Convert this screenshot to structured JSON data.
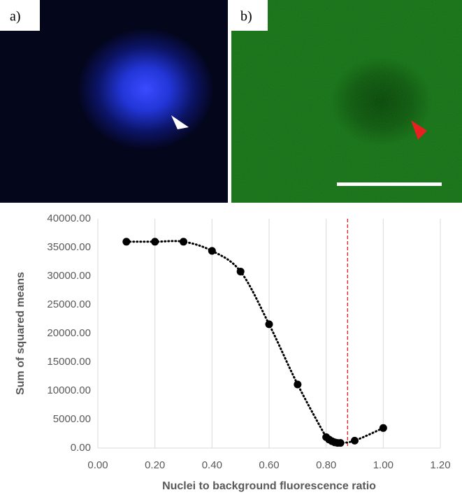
{
  "panels": [
    {
      "label": "a)"
    },
    {
      "label": "b)"
    }
  ],
  "chart_data": {
    "type": "scatter",
    "x_label": "Nuclei to background fluorescence ratio",
    "y_label": "Sum of squared means",
    "x": [
      0.1,
      0.2,
      0.3,
      0.4,
      0.5,
      0.6,
      0.7,
      0.8,
      0.81,
      0.82,
      0.83,
      0.84,
      0.85,
      0.9,
      1.0
    ],
    "series": [
      {
        "color": "#000000",
        "values": [
          36000,
          36000,
          36000,
          34400,
          30800,
          21600,
          11100,
          1900,
          1500,
          1200,
          1000,
          900,
          900,
          1300,
          3500
        ]
      }
    ],
    "smooth": true,
    "xlim": [
      0,
      1.2
    ],
    "xticks": [
      {
        "value": 0,
        "label": "0.00"
      },
      {
        "value": 0.2,
        "label": "0.20"
      },
      {
        "value": 0.4,
        "label": "0.40"
      },
      {
        "value": 0.6,
        "label": "0.60"
      },
      {
        "value": 0.8,
        "label": "0.80"
      },
      {
        "value": 1.0,
        "label": "1.00"
      },
      {
        "value": 1.2,
        "label": "1.20"
      }
    ],
    "ylim": [
      0,
      40000
    ],
    "yticks": [
      {
        "value": 0,
        "label": "0.00"
      },
      {
        "value": 5000,
        "label": "5000.00"
      },
      {
        "value": 10000,
        "label": "10000.00"
      },
      {
        "value": 15000,
        "label": "15000.00"
      },
      {
        "value": 20000,
        "label": "20000.00"
      },
      {
        "value": 25000,
        "label": "25000.00"
      },
      {
        "value": 30000,
        "label": "30000.00"
      },
      {
        "value": 35000,
        "label": "35000.00"
      },
      {
        "value": 40000,
        "label": "40000.00"
      }
    ],
    "grid": "x",
    "vline": {
      "value": 0.875,
      "color": "#e02020"
    }
  }
}
